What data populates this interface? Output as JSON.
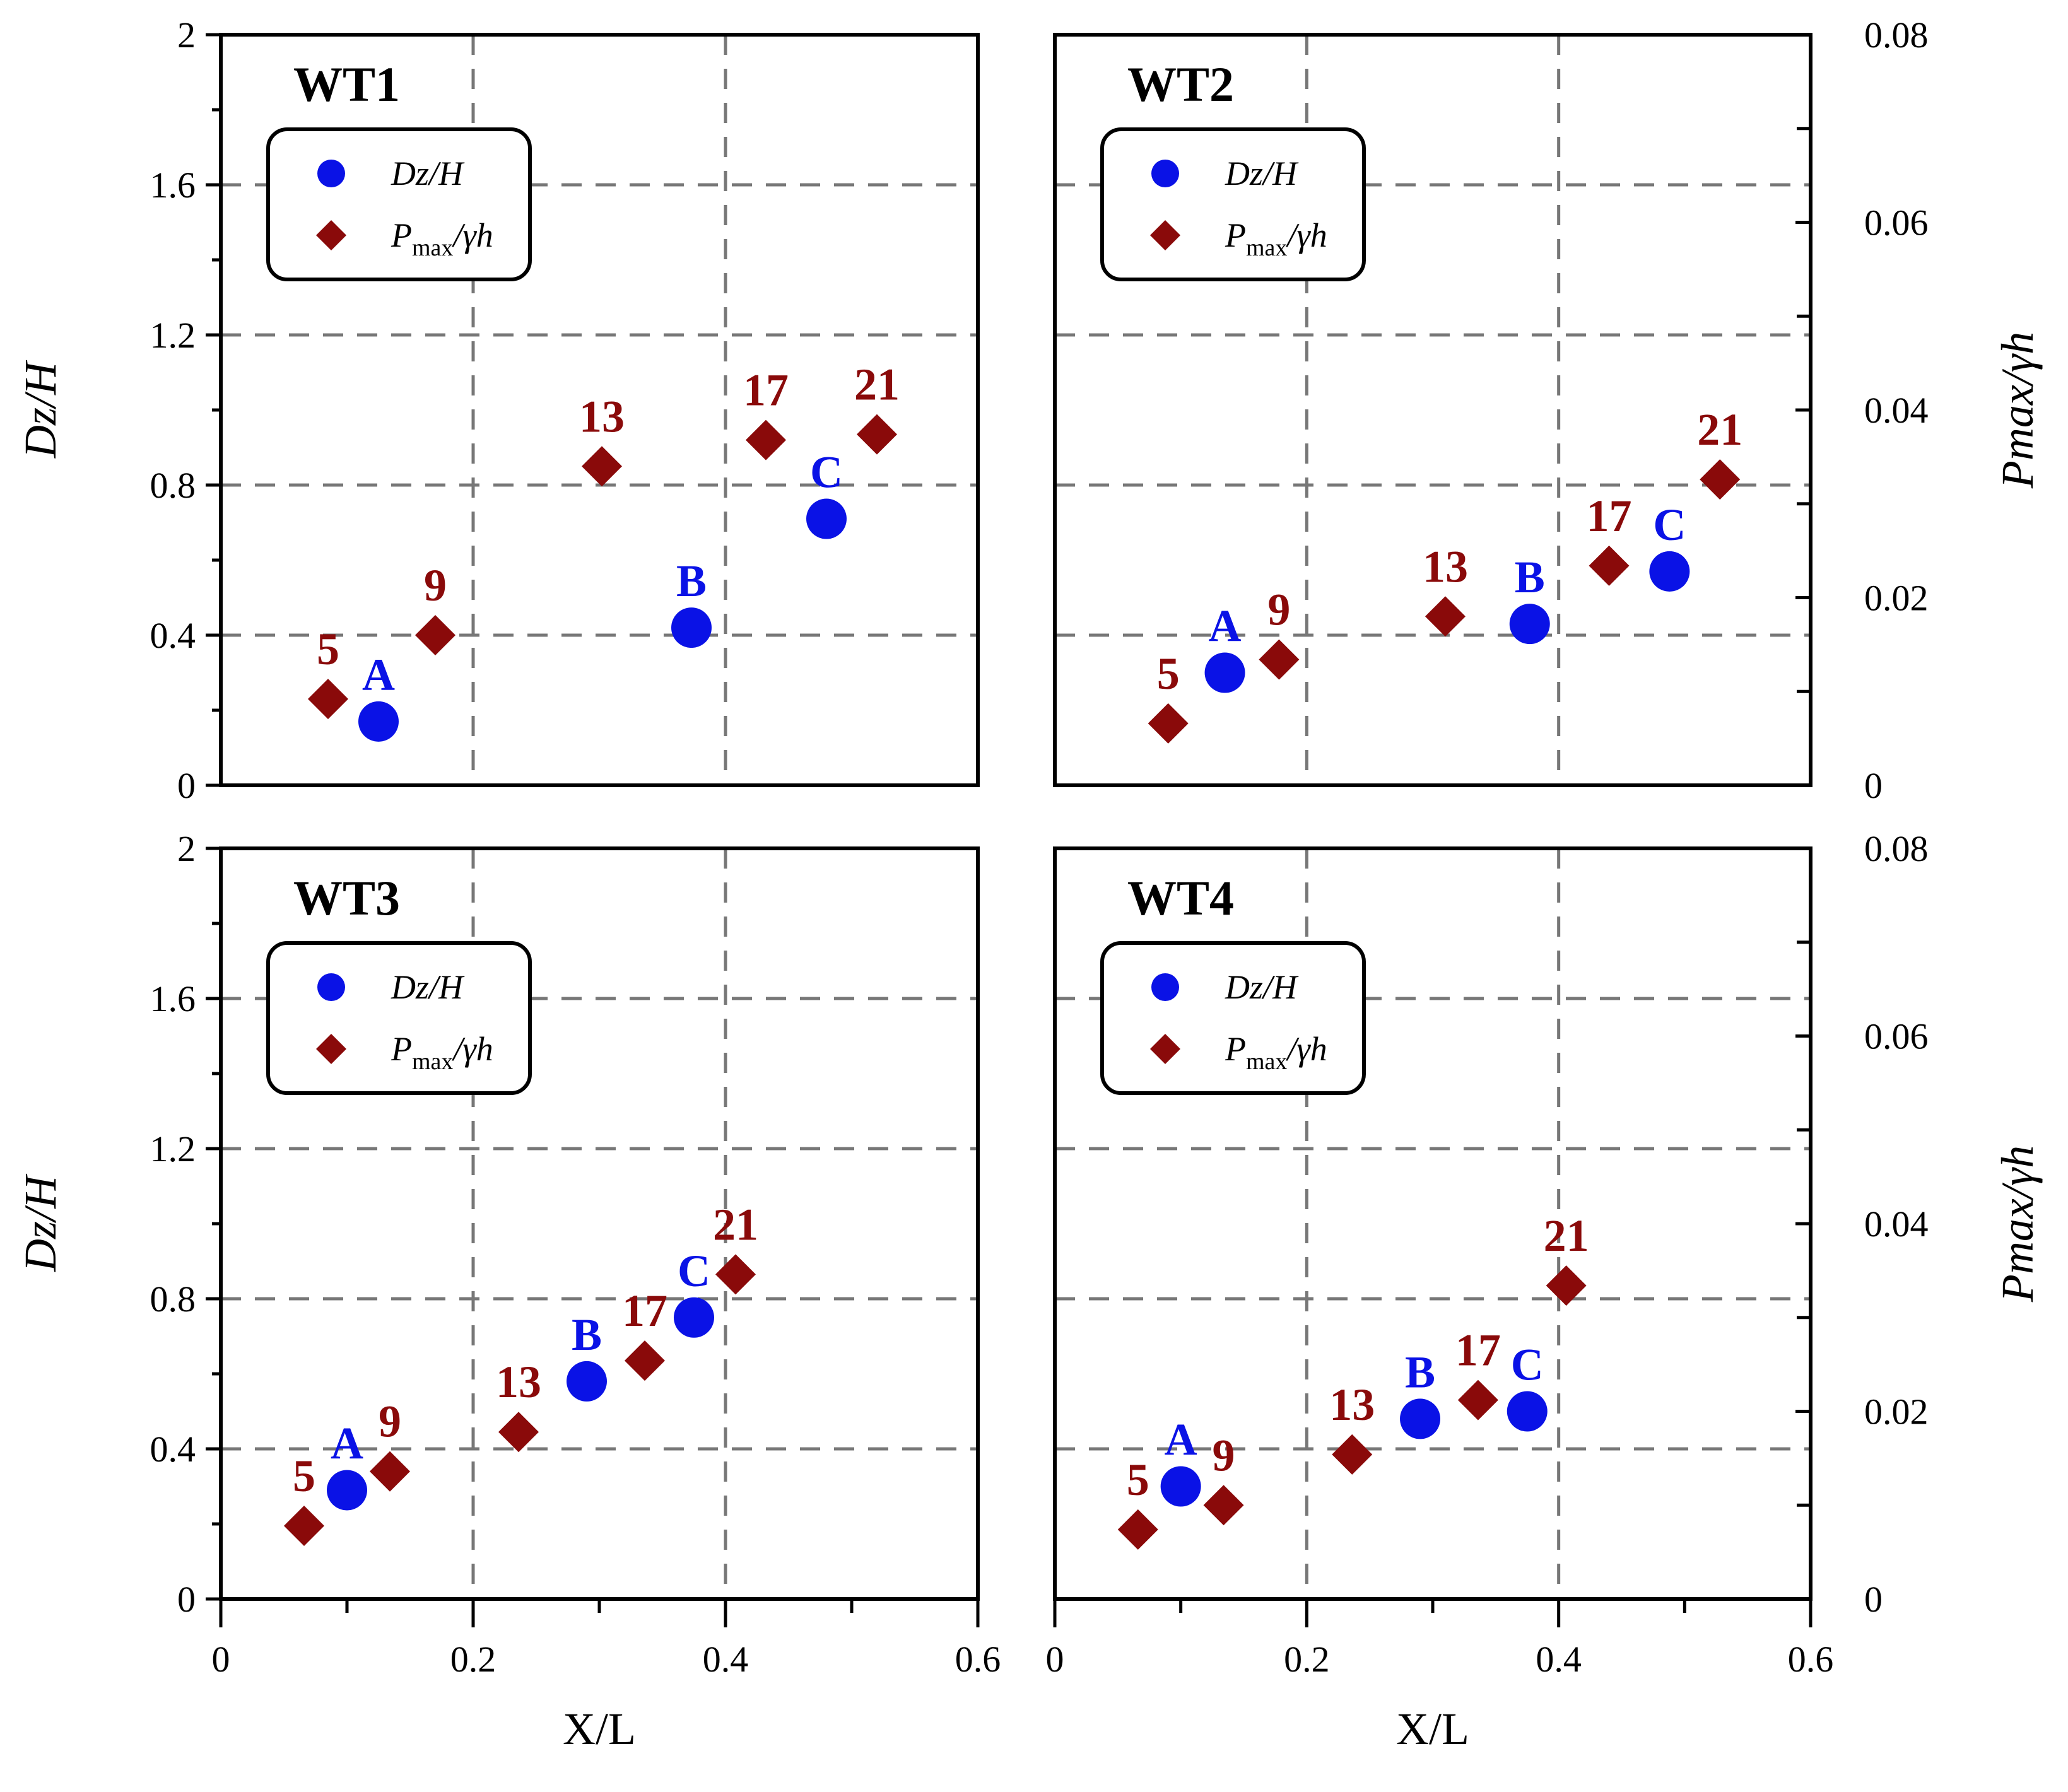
{
  "colors": {
    "dz": "#0a12e6",
    "pmax": "#8a0a0a",
    "grid": "#777777"
  },
  "markers": {
    "dz": "circle",
    "pmax": "diamond"
  },
  "chart_data": [
    {
      "type": "scatter",
      "title": "WT1",
      "xlabel": "X/L",
      "ylabel": "Dz/H",
      "y2label": "Pmax/γh",
      "xlim": [
        0,
        0.6
      ],
      "ylim": [
        0,
        2
      ],
      "y2lim": [
        0,
        0.08
      ],
      "legend": {
        "position": "top-left",
        "dz": "Dz/H",
        "p_main": "P",
        "p_sub": "max",
        "p_tail": "/γh"
      },
      "series": [
        {
          "name": "Dz/H",
          "axis": "left",
          "marker": "circle",
          "points": [
            {
              "label": "A",
              "x": 0.125,
              "y": 0.17
            },
            {
              "label": "B",
              "x": 0.373,
              "y": 0.42
            },
            {
              "label": "C",
              "x": 0.48,
              "y": 0.71
            }
          ]
        },
        {
          "name": "Pmax/γh",
          "axis": "right",
          "marker": "diamond",
          "points": [
            {
              "label": "5",
              "x": 0.085,
              "y": 0.0092
            },
            {
              "label": "9",
              "x": 0.17,
              "y": 0.016
            },
            {
              "label": "13",
              "x": 0.302,
              "y": 0.034
            },
            {
              "label": "17",
              "x": 0.432,
              "y": 0.0368
            },
            {
              "label": "21",
              "x": 0.52,
              "y": 0.0374
            }
          ]
        }
      ]
    },
    {
      "type": "scatter",
      "title": "WT2",
      "xlabel": "X/L",
      "ylabel": "Dz/H",
      "y2label": "Pmax/γh",
      "xlim": [
        0,
        0.6
      ],
      "ylim": [
        0,
        2
      ],
      "y2lim": [
        0,
        0.08
      ],
      "legend": {
        "position": "top-left",
        "dz": "Dz/H",
        "p_main": "P",
        "p_sub": "max",
        "p_tail": "/γh"
      },
      "series": [
        {
          "name": "Dz/H",
          "axis": "left",
          "marker": "circle",
          "points": [
            {
              "label": "A",
              "x": 0.135,
              "y": 0.3
            },
            {
              "label": "B",
              "x": 0.377,
              "y": 0.43
            },
            {
              "label": "C",
              "x": 0.488,
              "y": 0.57
            }
          ]
        },
        {
          "name": "Pmax/γh",
          "axis": "right",
          "marker": "diamond",
          "points": [
            {
              "label": "5",
              "x": 0.09,
              "y": 0.0066
            },
            {
              "label": "9",
              "x": 0.178,
              "y": 0.0134
            },
            {
              "label": "13",
              "x": 0.31,
              "y": 0.018
            },
            {
              "label": "17",
              "x": 0.44,
              "y": 0.0234
            },
            {
              "label": "21",
              "x": 0.528,
              "y": 0.0326
            }
          ]
        }
      ]
    },
    {
      "type": "scatter",
      "title": "WT3",
      "xlabel": "X/L",
      "ylabel": "Dz/H",
      "y2label": "Pmax/γh",
      "xlim": [
        0,
        0.6
      ],
      "ylim": [
        0,
        2
      ],
      "y2lim": [
        0,
        0.08
      ],
      "legend": {
        "position": "top-left",
        "dz": "Dz/H",
        "p_main": "P",
        "p_sub": "max",
        "p_tail": "/γh"
      },
      "series": [
        {
          "name": "Dz/H",
          "axis": "left",
          "marker": "circle",
          "points": [
            {
              "label": "A",
              "x": 0.1,
              "y": 0.29
            },
            {
              "label": "B",
              "x": 0.29,
              "y": 0.58
            },
            {
              "label": "C",
              "x": 0.375,
              "y": 0.75
            }
          ]
        },
        {
          "name": "Pmax/γh",
          "axis": "right",
          "marker": "diamond",
          "points": [
            {
              "label": "5",
              "x": 0.066,
              "y": 0.0078
            },
            {
              "label": "9",
              "x": 0.134,
              "y": 0.0136
            },
            {
              "label": "13",
              "x": 0.236,
              "y": 0.0178
            },
            {
              "label": "17",
              "x": 0.336,
              "y": 0.0254
            },
            {
              "label": "21",
              "x": 0.408,
              "y": 0.0346
            }
          ]
        }
      ]
    },
    {
      "type": "scatter",
      "title": "WT4",
      "xlabel": "X/L",
      "ylabel": "Dz/H",
      "y2label": "Pmax/γh",
      "xlim": [
        0,
        0.6
      ],
      "ylim": [
        0,
        2
      ],
      "y2lim": [
        0,
        0.08
      ],
      "legend": {
        "position": "top-left",
        "dz": "Dz/H",
        "p_main": "P",
        "p_sub": "max",
        "p_tail": "/γh"
      },
      "series": [
        {
          "name": "Dz/H",
          "axis": "left",
          "marker": "circle",
          "points": [
            {
              "label": "A",
              "x": 0.1,
              "y": 0.3
            },
            {
              "label": "B",
              "x": 0.29,
              "y": 0.48
            },
            {
              "label": "C",
              "x": 0.375,
              "y": 0.5
            }
          ]
        },
        {
          "name": "Pmax/γh",
          "axis": "right",
          "marker": "diamond",
          "points": [
            {
              "label": "5",
              "x": 0.066,
              "y": 0.0074
            },
            {
              "label": "9",
              "x": 0.134,
              "y": 0.01
            },
            {
              "label": "13",
              "x": 0.236,
              "y": 0.0154
            },
            {
              "label": "17",
              "x": 0.336,
              "y": 0.0212
            },
            {
              "label": "21",
              "x": 0.406,
              "y": 0.0334
            }
          ]
        }
      ]
    }
  ]
}
